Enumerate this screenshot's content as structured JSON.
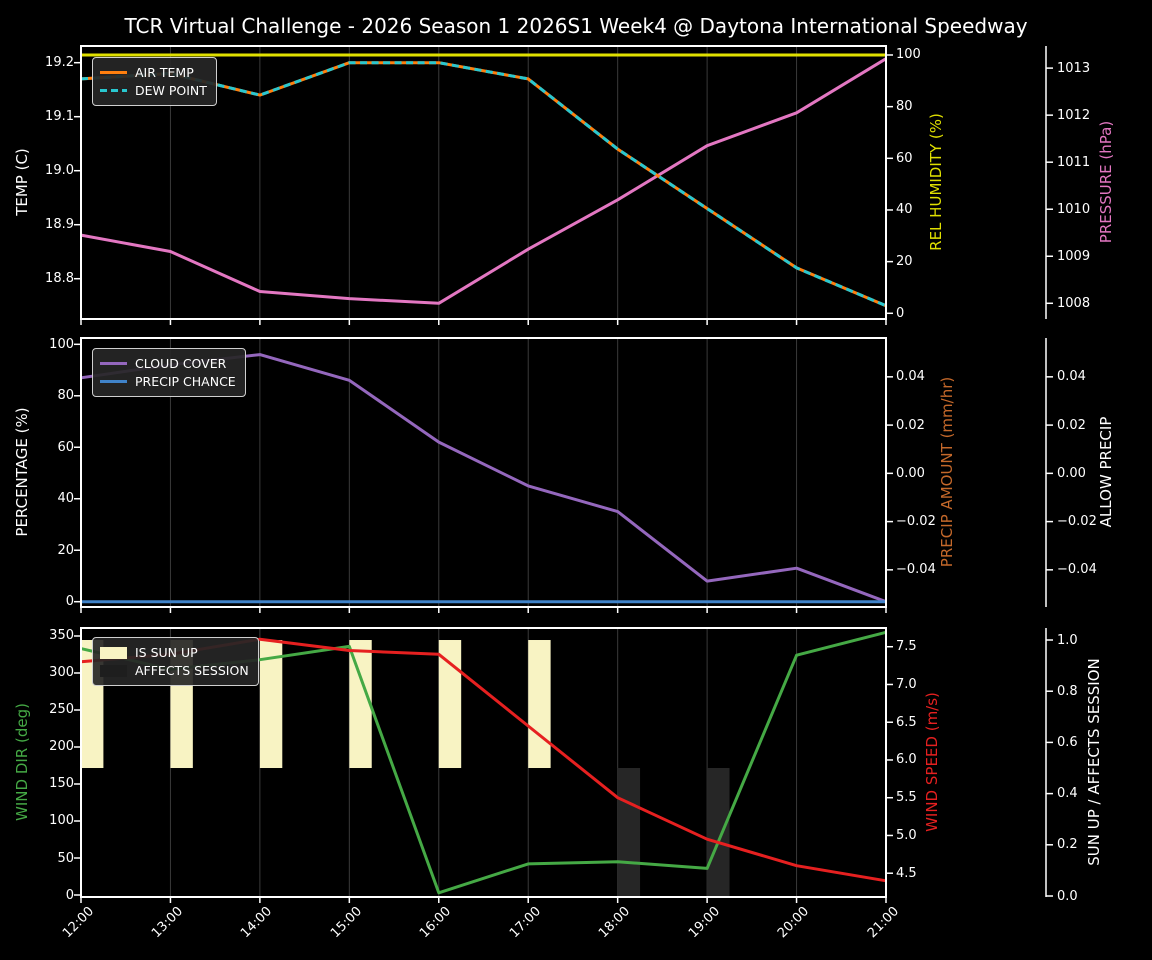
{
  "title": "TCR Virtual Challenge - 2026 Season 1 2026S1 Week4 @ Daytona International Speedway",
  "figure": {
    "background": "#000000",
    "frame_color": "#ffffff",
    "grid_color": "#3a3a3a",
    "tick_label_color": "#ffffff"
  },
  "chart_data": {
    "type": "line",
    "x_categories": [
      "12:00",
      "13:00",
      "14:00",
      "15:00",
      "16:00",
      "17:00",
      "18:00",
      "19:00",
      "20:00",
      "21:00"
    ],
    "subplots": [
      {
        "name": "temperature-humidity-pressure",
        "left_axis": {
          "label": "TEMP (C)",
          "color": "#ffffff",
          "range": [
            18.7254,
            19.2309
          ],
          "ticks": [
            {
              "v": 19.2,
              "label": "19.2"
            },
            {
              "v": 19.1,
              "label": "19.1"
            },
            {
              "v": 19.0,
              "label": "19.0"
            },
            {
              "v": 18.9,
              "label": "18.9"
            },
            {
              "v": 18.8,
              "label": "18.8"
            }
          ]
        },
        "right_axis_1": {
          "label": "REL HUMIDITY (%)",
          "color": "#e0e000",
          "range": [
            -2.21,
            103.48
          ],
          "ticks": [
            {
              "v": 100,
              "label": "100"
            },
            {
              "v": 80,
              "label": "80"
            },
            {
              "v": 60,
              "label": "60"
            },
            {
              "v": 40,
              "label": "40"
            },
            {
              "v": 20,
              "label": "20"
            },
            {
              "v": 0,
              "label": "0"
            }
          ]
        },
        "right_axis_2": {
          "label": "PRESSURE (hPa)",
          "color": "#e377c2",
          "range": [
            1007.666,
            1013.47
          ],
          "ticks": [
            {
              "v": 1013,
              "label": "1013"
            },
            {
              "v": 1012,
              "label": "1012"
            },
            {
              "v": 1011,
              "label": "1011"
            },
            {
              "v": 1010,
              "label": "1010"
            },
            {
              "v": 1009,
              "label": "1009"
            },
            {
              "v": 1008,
              "label": "1008"
            }
          ]
        },
        "series": [
          {
            "name": "REL HUMIDITY",
            "axis": "right1",
            "color": "#e0e000",
            "style": "solid",
            "visible": true,
            "values": [
              100,
              100,
              100,
              100,
              100,
              100,
              100,
              100,
              100,
              100
            ]
          },
          {
            "name": "PRESSURE",
            "axis": "right2",
            "color": "#e377c2",
            "style": "solid",
            "visible": true,
            "values": [
              1009.45,
              1009.1,
              1008.25,
              1008.1,
              1008.0,
              1009.15,
              1010.2,
              1011.35,
              1012.05,
              1013.2
            ]
          },
          {
            "name": "AIR TEMP",
            "axis": "left",
            "color": "#ff7f0e",
            "style": "solid",
            "visible": true,
            "values": [
              19.17,
              19.18,
              19.14,
              19.2,
              19.2,
              19.17,
              19.04,
              18.93,
              18.82,
              18.75
            ]
          },
          {
            "name": "DEW POINT",
            "axis": "left",
            "color": "#29c7cf",
            "style": "dashed",
            "visible": true,
            "values": [
              19.17,
              19.18,
              19.14,
              19.2,
              19.2,
              19.17,
              19.04,
              18.93,
              18.82,
              18.75
            ]
          }
        ],
        "legend": [
          {
            "label": "AIR TEMP",
            "color": "#ff7f0e",
            "swatch": "line"
          },
          {
            "label": "DEW POINT",
            "color": "#29c7cf",
            "swatch": "dashed"
          }
        ]
      },
      {
        "name": "cloud-precip",
        "left_axis": {
          "label": "PERCENTAGE (%)",
          "color": "#ffffff",
          "range": [
            -2.06,
            102.45
          ],
          "ticks": [
            {
              "v": 100,
              "label": "100"
            },
            {
              "v": 80,
              "label": "80"
            },
            {
              "v": 60,
              "label": "60"
            },
            {
              "v": 40,
              "label": "40"
            },
            {
              "v": 20,
              "label": "20"
            },
            {
              "v": 0,
              "label": "0"
            }
          ]
        },
        "right_axis_1": {
          "label": "PRECIP AMOUNT (mm/hr)",
          "color": "#c4682a",
          "range": [
            -0.0554,
            0.0561
          ],
          "ticks": [
            {
              "v": 0.04,
              "label": "0.04"
            },
            {
              "v": 0.02,
              "label": "0.02"
            },
            {
              "v": 0.0,
              "label": "0.00"
            },
            {
              "v": -0.02,
              "label": "−0.02"
            },
            {
              "v": -0.04,
              "label": "−0.04"
            }
          ]
        },
        "right_axis_2": {
          "label": "ALLOW PRECIP",
          "color": "#ffffff",
          "range": [
            -0.0554,
            0.0561
          ],
          "ticks": [
            {
              "v": 0.04,
              "label": "0.04"
            },
            {
              "v": 0.02,
              "label": "0.02"
            },
            {
              "v": 0.0,
              "label": "0.00"
            },
            {
              "v": -0.02,
              "label": "−0.02"
            },
            {
              "v": -0.04,
              "label": "−0.04"
            }
          ]
        },
        "series": [
          {
            "name": "CLOUD COVER",
            "axis": "left",
            "color": "#9467bd",
            "style": "solid",
            "visible": true,
            "values": [
              87,
              92,
              96,
              86,
              62,
              45,
              35,
              8,
              13,
              0
            ]
          },
          {
            "name": "PRECIP CHANCE",
            "axis": "left",
            "color": "#4083c9",
            "style": "solid",
            "visible": true,
            "values": [
              0,
              0,
              0,
              0,
              0,
              0,
              0,
              0,
              0,
              0
            ]
          },
          {
            "name": "PRECIP AMOUNT",
            "axis": "right1",
            "color": "#c4682a",
            "style": "solid",
            "visible": false,
            "values": [
              0,
              0,
              0,
              0,
              0,
              0,
              0,
              0,
              0,
              0
            ]
          },
          {
            "name": "ALLOW PRECIP",
            "axis": "right2",
            "color": "#ffffff",
            "style": "solid",
            "visible": false,
            "values": [
              0,
              0,
              0,
              0,
              0,
              0,
              0,
              0,
              0,
              0
            ]
          }
        ],
        "legend": [
          {
            "label": "CLOUD COVER",
            "color": "#9467bd",
            "swatch": "line"
          },
          {
            "label": "PRECIP CHANCE",
            "color": "#4083c9",
            "swatch": "line"
          }
        ]
      },
      {
        "name": "wind-sun",
        "left_axis": {
          "label": "WIND DIR (deg)",
          "color": "#45a945",
          "range": [
            -2.7,
            360.8
          ],
          "ticks": [
            {
              "v": 350,
              "label": "350"
            },
            {
              "v": 300,
              "label": "300"
            },
            {
              "v": 250,
              "label": "250"
            },
            {
              "v": 200,
              "label": "200"
            },
            {
              "v": 150,
              "label": "150"
            },
            {
              "v": 100,
              "label": "100"
            },
            {
              "v": 50,
              "label": "50"
            },
            {
              "v": 0,
              "label": "0"
            }
          ]
        },
        "right_axis_1": {
          "label": "WIND SPEED (m/s)",
          "color": "#e62020",
          "range": [
            4.185,
            7.748
          ],
          "ticks": [
            {
              "v": 7.5,
              "label": "7.5"
            },
            {
              "v": 7.0,
              "label": "7.0"
            },
            {
              "v": 6.5,
              "label": "6.5"
            },
            {
              "v": 6.0,
              "label": "6.0"
            },
            {
              "v": 5.5,
              "label": "5.5"
            },
            {
              "v": 5.0,
              "label": "5.0"
            },
            {
              "v": 4.5,
              "label": "4.5"
            }
          ]
        },
        "right_axis_2": {
          "label": "SUN UP / AFFECTS SESSION",
          "color": "#ffffff",
          "range": [
            -0.0039,
            1.0469
          ],
          "ticks": [
            {
              "v": 1.0,
              "label": "1.0"
            },
            {
              "v": 0.8,
              "label": "0.8"
            },
            {
              "v": 0.6,
              "label": "0.6"
            },
            {
              "v": 0.4,
              "label": "0.4"
            },
            {
              "v": 0.2,
              "label": "0.2"
            },
            {
              "v": 0.0,
              "label": "0.0"
            }
          ]
        },
        "bars": [
          {
            "name": "IS SUN UP",
            "axis": "right2",
            "color": "#f8f3c3",
            "span": [
              0.5,
              1.0
            ],
            "values": [
              1,
              1,
              1,
              1,
              1,
              1,
              0,
              0,
              0,
              0
            ]
          },
          {
            "name": "AFFECTS SESSION",
            "axis": "right2",
            "color": "#262626",
            "span": [
              0.0,
              0.5
            ],
            "values": [
              0,
              0,
              0,
              0,
              0,
              0,
              1,
              1,
              0,
              0
            ]
          }
        ],
        "series": [
          {
            "name": "WIND DIR",
            "axis": "left",
            "color": "#45a945",
            "style": "solid",
            "visible": true,
            "values": [
              333,
              305,
              318,
              336,
              3,
              42,
              45,
              36,
              324,
              355
            ]
          },
          {
            "name": "WIND SPEED",
            "axis": "right1",
            "color": "#e62020",
            "style": "solid",
            "visible": true,
            "values": [
              7.3,
              7.4,
              7.6,
              7.45,
              7.4,
              6.45,
              5.5,
              4.95,
              4.6,
              4.4
            ]
          }
        ],
        "legend": [
          {
            "label": "IS SUN UP",
            "color": "#f8f3c3",
            "swatch": "patch"
          },
          {
            "label": "AFFECTS SESSION",
            "color": "#1e1e1e",
            "swatch": "patch"
          }
        ]
      }
    ]
  }
}
